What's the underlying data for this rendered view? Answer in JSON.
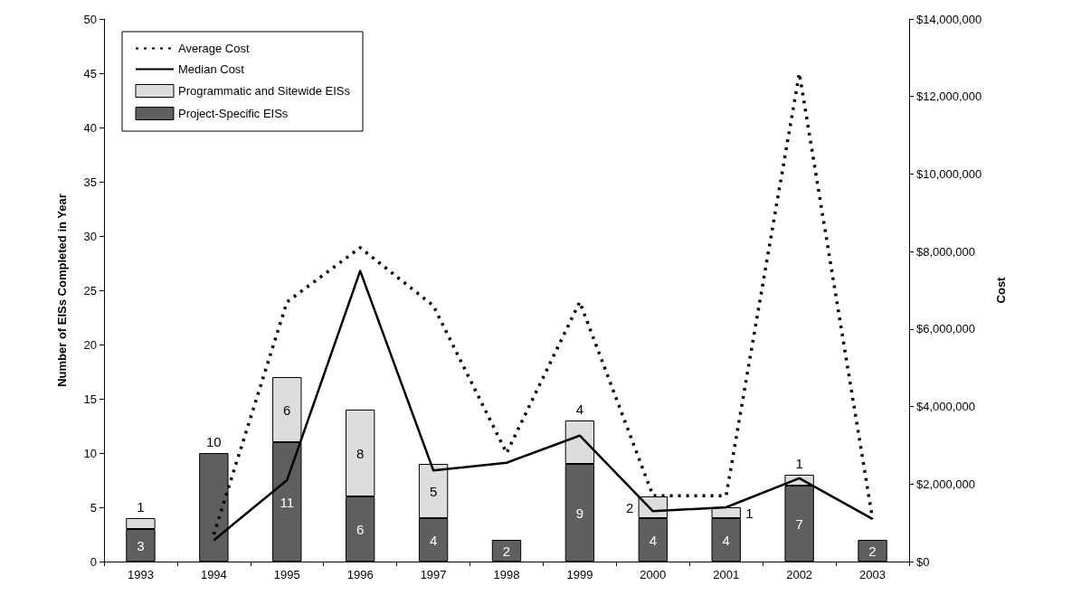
{
  "chart_data": {
    "type": "bar",
    "stacked": true,
    "categories": [
      "1993",
      "1994",
      "1995",
      "1996",
      "1997",
      "1998",
      "1999",
      "2000",
      "2001",
      "2002",
      "2003"
    ],
    "ylabel": "Number of EISs Completed in Year",
    "y2label": "Cost",
    "ylim": [
      0,
      50
    ],
    "yticks": [
      0,
      5,
      10,
      15,
      20,
      25,
      30,
      35,
      40,
      45,
      50
    ],
    "y2lim": [
      0,
      14000000
    ],
    "y2ticks": [
      {
        "value": 0,
        "label": "$0"
      },
      {
        "value": 2000000,
        "label": "$2,000,000"
      },
      {
        "value": 4000000,
        "label": "$4,000,000"
      },
      {
        "value": 6000000,
        "label": "$6,000,000"
      },
      {
        "value": 8000000,
        "label": "$8,000,000"
      },
      {
        "value": 10000000,
        "label": "$10,000,000"
      },
      {
        "value": 12000000,
        "label": "$12,000,000"
      },
      {
        "value": 14000000,
        "label": "$14,000,000"
      }
    ],
    "grid": false,
    "legend": "top left",
    "series": [
      {
        "name": "Project-Specific EISs",
        "color": "#5f5f5f",
        "values": [
          3,
          10,
          11,
          6,
          4,
          2,
          9,
          4,
          4,
          7,
          2
        ],
        "value_labels": [
          "3",
          "10",
          "11",
          "6",
          "4",
          "2",
          "9",
          "4",
          "4",
          "7",
          "2"
        ]
      },
      {
        "name": "Programmatic and Sitewide EISs",
        "color": "#dddddd",
        "values": [
          1,
          0,
          6,
          8,
          5,
          0,
          4,
          2,
          1,
          1,
          0
        ],
        "value_labels": [
          "1",
          null,
          "6",
          "8",
          "5",
          null,
          "4",
          "2",
          "1",
          "1",
          null
        ]
      },
      {
        "name": "Average Cost",
        "type": "line",
        "axis": "y2",
        "color": "#000000",
        "line_style": "dotted",
        "marker": "none",
        "values": [
          null,
          700000,
          6700000,
          8100000,
          6600000,
          2800000,
          6700000,
          1700000,
          1700000,
          12600000,
          1100000
        ]
      },
      {
        "name": "Median Cost",
        "type": "line",
        "axis": "y2",
        "color": "#000000",
        "line_style": "solid",
        "marker": "none",
        "values": [
          null,
          550000,
          2100000,
          7500000,
          2350000,
          2550000,
          3250000,
          1300000,
          1400000,
          2150000,
          1100000
        ]
      }
    ]
  }
}
